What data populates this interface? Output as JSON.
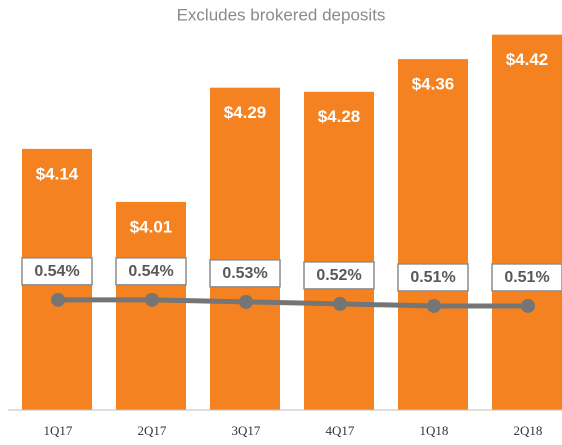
{
  "chart_data": {
    "type": "bar",
    "subtitle": "Excludes brokered deposits",
    "categories": [
      "1Q17",
      "2Q17",
      "3Q17",
      "4Q17",
      "1Q18",
      "2Q18"
    ],
    "ylim": [
      3.5,
      4.5
    ],
    "y2lim": [
      0,
      2
    ],
    "series": [
      {
        "type": "bar",
        "color": "#f58220",
        "values": [
          4.14,
          4.01,
          4.29,
          4.28,
          4.36,
          4.42
        ],
        "value_labels": [
          "$4.14",
          "$4.01",
          "$4.29",
          "$4.28",
          "$4.36",
          "$4.42"
        ]
      },
      {
        "type": "line",
        "axis": "y2",
        "color": "#757575",
        "values": [
          0.54,
          0.54,
          0.53,
          0.52,
          0.51,
          0.51
        ],
        "value_labels": [
          "0.54%",
          "0.54%",
          "0.53%",
          "0.52%",
          "0.51%",
          "0.51%"
        ]
      }
    ]
  }
}
